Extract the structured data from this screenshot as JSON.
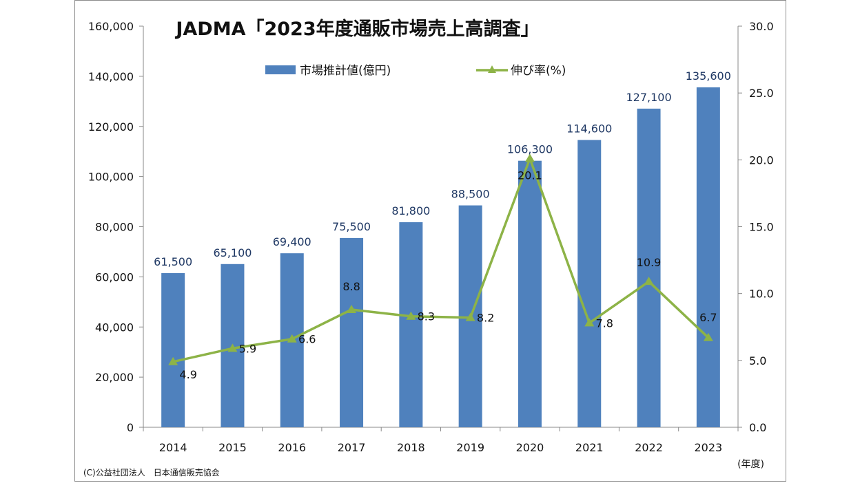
{
  "chart_data": {
    "type": "bar",
    "title": "JADMA「2023年度通販市場売上高調査」",
    "categories": [
      "2014",
      "2015",
      "2016",
      "2017",
      "2018",
      "2019",
      "2020",
      "2021",
      "2022",
      "2023"
    ],
    "series": [
      {
        "name": "市場推計値(億円)",
        "kind": "bar",
        "axis": "left",
        "color": "#4f81bd",
        "values": [
          61500,
          65100,
          69400,
          75500,
          81800,
          88500,
          106300,
          114600,
          127100,
          135600
        ],
        "labels": [
          "61,500",
          "65,100",
          "69,400",
          "75,500",
          "81,800",
          "88,500",
          "106,300",
          "114,600",
          "127,100",
          "135,600"
        ]
      },
      {
        "name": "伸び率(%)",
        "kind": "line",
        "axis": "right",
        "color": "#8db347",
        "marker": "triangle",
        "values": [
          4.9,
          5.9,
          6.6,
          8.8,
          8.3,
          8.2,
          20.1,
          7.8,
          10.9,
          6.7
        ],
        "labels": [
          "4.9",
          "5.9",
          "6.6",
          "8.8",
          "8.3",
          "8.2",
          "20.1",
          "7.8",
          "10.9",
          "6.7"
        ]
      }
    ],
    "y_left": {
      "ylim": [
        0,
        160000
      ],
      "ticks": [
        "0",
        "20,000",
        "40,000",
        "60,000",
        "80,000",
        "100,000",
        "120,000",
        "140,000",
        "160,000"
      ]
    },
    "y_right": {
      "ylim": [
        0,
        30
      ],
      "ticks": [
        "0.0",
        "5.0",
        "10.0",
        "15.0",
        "20.0",
        "25.0",
        "30.0"
      ]
    },
    "xlabel": "(年度)",
    "legend_position": "top-center",
    "grid": false,
    "source_note": "(C)公益社団法人　日本通信販売協会"
  }
}
